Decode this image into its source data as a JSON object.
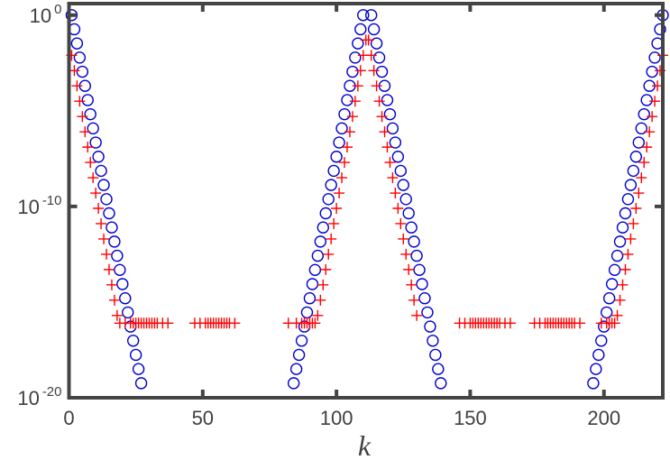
{
  "chart_data": {
    "type": "scatter",
    "title": "",
    "xlabel": "k",
    "ylabel": "",
    "xlim": [
      0,
      222
    ],
    "ylim": [
      1e-20,
      4
    ],
    "yscale": "log",
    "grid": false,
    "xticks": [
      0,
      50,
      100,
      150,
      200
    ],
    "xtick_labels": [
      "0",
      "50",
      "100",
      "150",
      "200"
    ],
    "yticks": [
      1,
      1e-10,
      1e-20
    ],
    "ytick_labels": [
      {
        "base": "10",
        "exp": "0"
      },
      {
        "base": "10",
        "exp": "-10"
      },
      {
        "base": "10",
        "exp": "-20"
      }
    ],
    "series": [
      {
        "marker": "o",
        "color": "#0000d0",
        "x": [
          1,
          2,
          3,
          4,
          5,
          6,
          7,
          8,
          9,
          10,
          11,
          12,
          13,
          14,
          15,
          16,
          17,
          18,
          19,
          20,
          21,
          22,
          23,
          24,
          25,
          26,
          27,
          84,
          85,
          86,
          87,
          88,
          89,
          90,
          91,
          92,
          93,
          94,
          95,
          96,
          97,
          98,
          99,
          100,
          101,
          102,
          103,
          104,
          105,
          106,
          107,
          108,
          109,
          110,
          113,
          114,
          115,
          116,
          117,
          118,
          119,
          120,
          121,
          122,
          123,
          124,
          125,
          126,
          127,
          128,
          129,
          130,
          131,
          132,
          133,
          134,
          135,
          136,
          137,
          138,
          139,
          196,
          197,
          198,
          199,
          200,
          201,
          202,
          203,
          204,
          205,
          206,
          207,
          208,
          209,
          210,
          211,
          212,
          213,
          214,
          215,
          216,
          217,
          218,
          219,
          220,
          221,
          222
        ],
        "y": [
          1,
          0.182,
          0.0331,
          0.00603,
          0.0011,
          0.0002,
          3.63e-05,
          6.61e-06,
          1.2e-06,
          2.19e-07,
          3.98e-08,
          7.24e-09,
          1.32e-09,
          2.4e-10,
          4.37e-11,
          7.94e-12,
          1.45e-12,
          2.63e-13,
          4.79e-14,
          8.71e-15,
          1.58e-15,
          2.88e-16,
          5.25e-17,
          9.55e-18,
          1.74e-18,
          3.16e-19,
          5.75e-20,
          5.75e-20,
          3.16e-19,
          1.74e-18,
          9.55e-18,
          5.25e-17,
          2.88e-16,
          1.58e-15,
          8.71e-15,
          4.79e-14,
          2.63e-13,
          1.45e-12,
          7.94e-12,
          4.37e-11,
          2.4e-10,
          1.32e-09,
          7.24e-09,
          3.98e-08,
          2.19e-07,
          1.2e-06,
          6.61e-06,
          3.63e-05,
          0.0002,
          0.0011,
          0.00603,
          0.0331,
          0.182,
          1,
          1,
          0.182,
          0.0331,
          0.00603,
          0.0011,
          0.0002,
          3.63e-05,
          6.61e-06,
          1.2e-06,
          2.19e-07,
          3.98e-08,
          7.24e-09,
          1.32e-09,
          2.4e-10,
          4.37e-11,
          7.94e-12,
          1.45e-12,
          2.63e-13,
          4.79e-14,
          8.71e-15,
          1.58e-15,
          2.88e-16,
          5.25e-17,
          9.55e-18,
          1.74e-18,
          3.16e-19,
          5.75e-20,
          5.75e-20,
          3.16e-19,
          1.74e-18,
          9.55e-18,
          5.25e-17,
          2.88e-16,
          1.58e-15,
          8.71e-15,
          4.79e-14,
          2.63e-13,
          1.45e-12,
          7.94e-12,
          4.37e-11,
          2.4e-10,
          1.32e-09,
          7.24e-09,
          3.98e-08,
          2.19e-07,
          1.2e-06,
          6.61e-06,
          3.63e-05,
          0.0002,
          0.0011,
          0.00603,
          0.0331,
          0.182,
          1
        ]
      },
      {
        "marker": "+",
        "color": "#ff0000",
        "x": [
          1,
          2,
          3,
          4,
          5,
          6,
          7,
          8,
          9,
          10,
          11,
          12,
          13,
          14,
          15,
          16,
          17,
          18,
          19,
          21,
          23,
          24,
          25,
          26,
          27,
          28,
          29,
          30,
          31,
          32,
          33,
          35,
          37,
          47,
          49,
          51,
          52,
          53,
          54,
          55,
          56,
          57,
          58,
          59,
          60,
          62,
          82,
          85,
          87,
          88,
          89,
          90,
          91,
          92,
          93,
          94,
          95,
          96,
          97,
          98,
          99,
          100,
          101,
          102,
          103,
          104,
          105,
          106,
          107,
          108,
          109,
          110,
          111,
          112,
          113,
          114,
          115,
          116,
          117,
          118,
          119,
          120,
          121,
          122,
          123,
          124,
          125,
          126,
          127,
          128,
          129,
          130,
          146,
          148,
          150,
          151,
          152,
          153,
          154,
          155,
          156,
          157,
          158,
          159,
          160,
          161,
          163,
          165,
          174,
          176,
          178,
          179,
          180,
          181,
          182,
          183,
          184,
          185,
          186,
          187,
          188,
          189,
          191,
          199,
          201,
          202,
          203,
          204,
          205,
          206,
          207,
          208,
          209,
          210,
          211,
          212,
          213,
          214,
          215,
          216,
          217,
          218,
          219,
          220,
          221,
          222
        ],
        "y": [
          0.00794,
          0.00126,
          0.0002,
          3.16e-05,
          5.01e-06,
          7.94e-07,
          1.26e-07,
          2e-08,
          3.16e-09,
          5.01e-10,
          7.94e-11,
          1.26e-11,
          2e-12,
          3.16e-13,
          5.01e-14,
          7.94e-15,
          1.26e-15,
          2e-16,
          7.94e-17,
          7.94e-17,
          7.94e-17,
          7.94e-17,
          7.94e-17,
          7.94e-17,
          7.94e-17,
          7.94e-17,
          7.94e-17,
          7.94e-17,
          7.94e-17,
          7.94e-17,
          7.94e-17,
          7.94e-17,
          7.94e-17,
          7.94e-17,
          7.94e-17,
          7.94e-17,
          7.94e-17,
          7.94e-17,
          7.94e-17,
          7.94e-17,
          7.94e-17,
          7.94e-17,
          7.94e-17,
          7.94e-17,
          7.94e-17,
          7.94e-17,
          7.94e-17,
          7.94e-17,
          7.94e-17,
          7.94e-17,
          7.94e-17,
          7.94e-17,
          7.94e-17,
          7.94e-17,
          2e-16,
          1.26e-15,
          7.94e-15,
          5.01e-14,
          3.16e-13,
          2e-12,
          1.26e-11,
          7.94e-11,
          5.01e-10,
          3.16e-09,
          2e-08,
          1.26e-07,
          7.94e-07,
          5.01e-06,
          3.16e-05,
          0.0002,
          0.00126,
          0.00794,
          0.0501,
          0.0501,
          0.00794,
          0.00126,
          0.0002,
          3.16e-05,
          5.01e-06,
          7.94e-07,
          1.26e-07,
          2e-08,
          3.16e-09,
          5.01e-10,
          7.94e-11,
          1.26e-11,
          2e-12,
          3.16e-13,
          5.01e-14,
          7.94e-15,
          1.26e-15,
          2e-16,
          7.94e-17,
          7.94e-17,
          7.94e-17,
          7.94e-17,
          7.94e-17,
          7.94e-17,
          7.94e-17,
          7.94e-17,
          7.94e-17,
          7.94e-17,
          7.94e-17,
          7.94e-17,
          7.94e-17,
          7.94e-17,
          7.94e-17,
          7.94e-17,
          7.94e-17,
          7.94e-17,
          7.94e-17,
          7.94e-17,
          7.94e-17,
          7.94e-17,
          7.94e-17,
          7.94e-17,
          7.94e-17,
          7.94e-17,
          7.94e-17,
          7.94e-17,
          7.94e-17,
          7.94e-17,
          7.94e-17,
          7.94e-17,
          7.94e-17,
          7.94e-17,
          7.94e-17,
          7.94e-17,
          2e-16,
          1.26e-15,
          7.94e-15,
          5.01e-14,
          3.16e-13,
          2e-12,
          1.26e-11,
          7.94e-11,
          5.01e-10,
          3.16e-09,
          2e-08,
          1.26e-07,
          7.94e-07,
          5.01e-06,
          3.16e-05,
          0.0002,
          0.00126,
          0.00794
        ]
      }
    ],
    "axis_color": "#444444"
  }
}
